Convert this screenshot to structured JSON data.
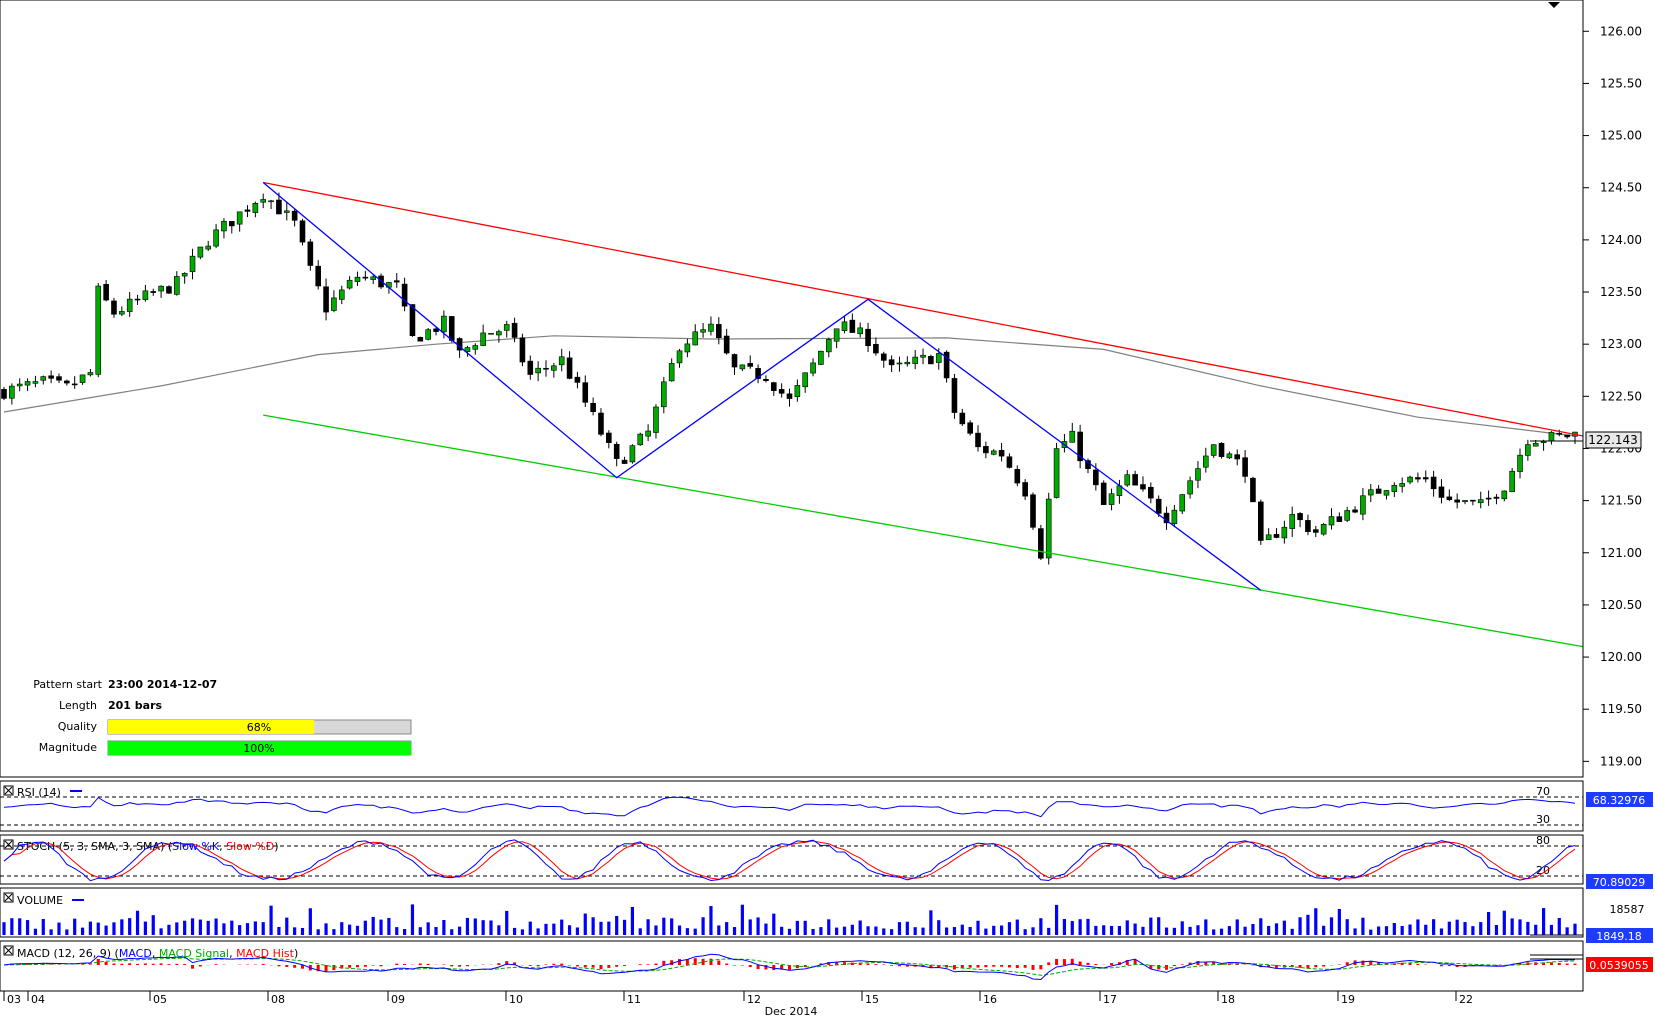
{
  "colors": {
    "bull": "#00aa00",
    "bear": "#000000",
    "resistance": "#ff0000",
    "support": "#00cc00",
    "zigzag": "#0000ff",
    "ma": "#808080",
    "rsi": "#0000ff",
    "stoch_k": "#0000ff",
    "stoch_d": "#ff0000",
    "volume": "#0000ff",
    "macd": "#0000ff",
    "macd_signal": "#00aa00",
    "macd_hist": "#ff0000",
    "quality_fill": "#ffff00",
    "magnitude_fill": "#00ff00",
    "label_blue_bg": "#1e3cff"
  },
  "pattern_info": {
    "start_label": "Pattern start",
    "start_value": "23:00 2014-12-07",
    "length_label": "Length",
    "length_value": "201 bars",
    "quality_label": "Quality",
    "quality_text": "68%",
    "quality_value": 0.68,
    "magnitude_label": "Magnitude",
    "magnitude_text": "100%",
    "magnitude_value": 1.0
  },
  "price_axis": {
    "ticks": [
      "126.00",
      "125.50",
      "125.00",
      "124.50",
      "124.00",
      "123.50",
      "123.00",
      "122.50",
      "122.00",
      "121.50",
      "121.00",
      "120.50",
      "120.00",
      "119.50",
      "119.00"
    ],
    "tick_values": [
      126.0,
      125.5,
      125.0,
      124.5,
      124.0,
      123.5,
      123.0,
      122.5,
      122.0,
      121.5,
      121.0,
      120.5,
      120.0,
      119.5,
      119.0
    ],
    "current_price": "122.143",
    "min": 118.85,
    "max": 126.3
  },
  "x_axis": {
    "labels": [
      "03",
      "04",
      "05",
      "08",
      "09",
      "10",
      "11",
      "12",
      "15",
      "16",
      "17",
      "18",
      "19",
      "22"
    ],
    "month_label": "Dec 2014"
  },
  "panels": {
    "rsi": {
      "title": "RSI (14)",
      "level_high": "70",
      "level_low": "30",
      "value": "68.32976"
    },
    "stoch": {
      "title": "STOCH (5, 3, SMA, 3, SMA)",
      "k_label": "Slow %K",
      "d_label": "Slow %D",
      "level_high": "80",
      "level_low": "20",
      "value": "70.89029"
    },
    "volume": {
      "title": "VOLUME",
      "max_label": "18587",
      "value": "1849.18"
    },
    "macd": {
      "title": "MACD (12, 26, 9)",
      "macd_label": "MACD",
      "signal_label": "MACD Signal",
      "hist_label": "MACD Hist",
      "value": "0.0539055"
    }
  },
  "chart_data": {
    "type": "candlestick",
    "title": "",
    "ylim": [
      118.85,
      126.3
    ],
    "bars": 201,
    "pattern": "descending channel",
    "resistance_line": {
      "from": {
        "bar": 33,
        "price": 124.55
      },
      "to": {
        "bar": 200,
        "price": 122.14
      }
    },
    "support_line": {
      "from": {
        "bar": 33,
        "price": 122.32
      },
      "to": {
        "bar": 200,
        "price": 120.1
      }
    },
    "zigzag": [
      {
        "bar": 33,
        "price": 124.55
      },
      {
        "bar": 78,
        "price": 121.72
      },
      {
        "bar": 110,
        "price": 123.43
      },
      {
        "bar": 160,
        "price": 120.64
      }
    ],
    "price_path": [
      {
        "bar": 0,
        "price": 122.55
      },
      {
        "bar": 5,
        "price": 122.63
      },
      {
        "bar": 8,
        "price": 122.58
      },
      {
        "bar": 11,
        "price": 122.72
      },
      {
        "bar": 12,
        "price": 123.5
      },
      {
        "bar": 14,
        "price": 123.3
      },
      {
        "bar": 18,
        "price": 123.45
      },
      {
        "bar": 22,
        "price": 123.58
      },
      {
        "bar": 26,
        "price": 124.0
      },
      {
        "bar": 30,
        "price": 124.25
      },
      {
        "bar": 33,
        "price": 124.45
      },
      {
        "bar": 37,
        "price": 124.15
      },
      {
        "bar": 39,
        "price": 123.7
      },
      {
        "bar": 41,
        "price": 123.35
      },
      {
        "bar": 45,
        "price": 123.65
      },
      {
        "bar": 50,
        "price": 123.55
      },
      {
        "bar": 52,
        "price": 123.05
      },
      {
        "bar": 56,
        "price": 123.2
      },
      {
        "bar": 58,
        "price": 122.9
      },
      {
        "bar": 61,
        "price": 123.1
      },
      {
        "bar": 64,
        "price": 123.15
      },
      {
        "bar": 67,
        "price": 122.7
      },
      {
        "bar": 71,
        "price": 122.85
      },
      {
        "bar": 75,
        "price": 122.3
      },
      {
        "bar": 78,
        "price": 121.85
      },
      {
        "bar": 82,
        "price": 122.15
      },
      {
        "bar": 86,
        "price": 123.0
      },
      {
        "bar": 90,
        "price": 123.15
      },
      {
        "bar": 93,
        "price": 122.75
      },
      {
        "bar": 97,
        "price": 122.7
      },
      {
        "bar": 100,
        "price": 122.45
      },
      {
        "bar": 103,
        "price": 122.8
      },
      {
        "bar": 106,
        "price": 123.2
      },
      {
        "bar": 110,
        "price": 123.05
      },
      {
        "bar": 113,
        "price": 122.75
      },
      {
        "bar": 117,
        "price": 122.85
      },
      {
        "bar": 119,
        "price": 122.9
      },
      {
        "bar": 121,
        "price": 122.35
      },
      {
        "bar": 124,
        "price": 122.0
      },
      {
        "bar": 127,
        "price": 121.95
      },
      {
        "bar": 130,
        "price": 121.6
      },
      {
        "bar": 132,
        "price": 121.0
      },
      {
        "bar": 134,
        "price": 122.0
      },
      {
        "bar": 136,
        "price": 122.1
      },
      {
        "bar": 140,
        "price": 121.45
      },
      {
        "bar": 143,
        "price": 121.7
      },
      {
        "bar": 148,
        "price": 121.35
      },
      {
        "bar": 151,
        "price": 121.7
      },
      {
        "bar": 154,
        "price": 122.05
      },
      {
        "bar": 158,
        "price": 121.8
      },
      {
        "bar": 160,
        "price": 121.05
      },
      {
        "bar": 164,
        "price": 121.35
      },
      {
        "bar": 167,
        "price": 121.2
      },
      {
        "bar": 170,
        "price": 121.35
      },
      {
        "bar": 173,
        "price": 121.5
      },
      {
        "bar": 177,
        "price": 121.7
      },
      {
        "bar": 181,
        "price": 121.7
      },
      {
        "bar": 184,
        "price": 121.5
      },
      {
        "bar": 188,
        "price": 121.45
      },
      {
        "bar": 191,
        "price": 121.65
      },
      {
        "bar": 194,
        "price": 122.1
      },
      {
        "bar": 197,
        "price": 122.1
      },
      {
        "bar": 200,
        "price": 122.14
      }
    ],
    "ma_path": [
      {
        "bar": 0,
        "price": 122.35
      },
      {
        "bar": 20,
        "price": 122.6
      },
      {
        "bar": 40,
        "price": 122.9
      },
      {
        "bar": 55,
        "price": 123.0
      },
      {
        "bar": 70,
        "price": 123.08
      },
      {
        "bar": 90,
        "price": 123.05
      },
      {
        "bar": 120,
        "price": 123.06
      },
      {
        "bar": 140,
        "price": 122.95
      },
      {
        "bar": 160,
        "price": 122.6
      },
      {
        "bar": 180,
        "price": 122.3
      },
      {
        "bar": 200,
        "price": 122.12
      }
    ]
  }
}
